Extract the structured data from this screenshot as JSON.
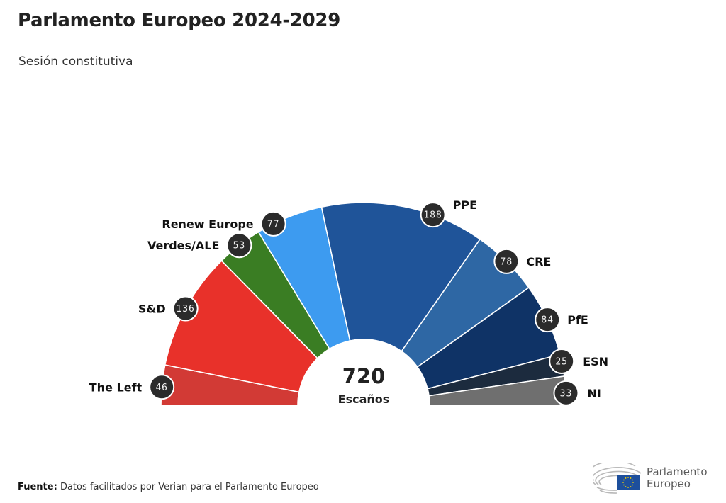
{
  "header": {
    "title": "Parlamento Europeo 2024-2029",
    "subtitle": "Sesión constitutiva"
  },
  "chart_data": {
    "type": "pie",
    "variant": "parliament-hemicycle",
    "title": "Parlamento Europeo 2024-2029",
    "subtitle": "Sesión constitutiva",
    "total": 720,
    "total_label": "Escaños",
    "order": "left-to-right",
    "groups": [
      {
        "name": "The Left",
        "seats": 46,
        "color": "#d23a35"
      },
      {
        "name": "S&D",
        "seats": 136,
        "color": "#e8312a"
      },
      {
        "name": "Verdes/ALE",
        "seats": 53,
        "color": "#3a7d23"
      },
      {
        "name": "Renew Europe",
        "seats": 77,
        "color": "#3d9bf0"
      },
      {
        "name": "PPE",
        "seats": 188,
        "color": "#1f5499"
      },
      {
        "name": "CRE",
        "seats": 78,
        "color": "#2e67a4"
      },
      {
        "name": "PfE",
        "seats": 84,
        "color": "#0f3366"
      },
      {
        "name": "ESN",
        "seats": 25,
        "color": "#1c2b3e"
      },
      {
        "name": "NI",
        "seats": 33,
        "color": "#6f6f6f"
      }
    ]
  },
  "footer": {
    "source_label": "Fuente:",
    "source_text": "Datos facilitados por Verian para el Parlamento Europeo",
    "logo_line1": "Parlamento",
    "logo_line2": "Europeo"
  },
  "colors": {
    "badge": "#2b2b2b",
    "badge_border": "#ffffff",
    "eu_flag": "#1d4f9c",
    "eu_stars": "#f5d000"
  }
}
